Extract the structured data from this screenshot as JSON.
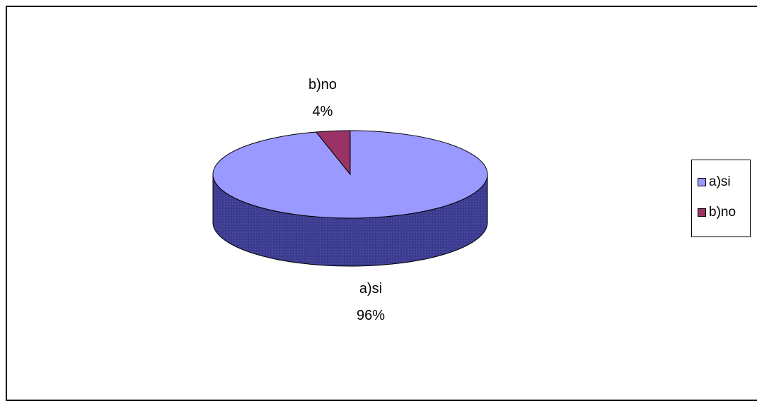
{
  "chart_data": {
    "type": "pie",
    "title": "",
    "slices": [
      {
        "label": "a)si",
        "value": 96,
        "value_label": "96%",
        "color": "#9999ff"
      },
      {
        "label": "b)no",
        "value": 4,
        "value_label": "4%",
        "color": "#993366"
      }
    ],
    "legend": {
      "placement": "right",
      "entries": [
        "a)si",
        "b)no"
      ]
    },
    "style": "3d"
  }
}
